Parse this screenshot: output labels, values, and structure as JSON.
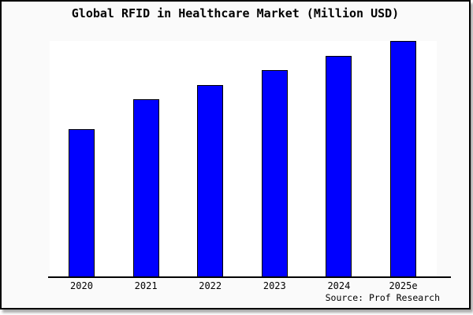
{
  "window": {
    "title": "Global RFID in Healthcare Market (Million USD)"
  },
  "chart_data": {
    "type": "bar",
    "title": "Global RFID in Healthcare Market (Million USD)",
    "categories": [
      "2020",
      "2021",
      "2022",
      "2023",
      "2024",
      "2025e"
    ],
    "values": [
      62.7,
      75.3,
      81.3,
      87.7,
      93.7,
      100.0
    ],
    "values_unit": "percent of tallest bar (no y-axis values shown in image)",
    "xlabel": "",
    "ylabel": "",
    "ylim": [
      0,
      100
    ],
    "grid": false,
    "legend": false,
    "bar_fill_color": "#0000ff",
    "bar_edge_color": "#000000",
    "source": "Source: Prof Research"
  },
  "colors": {
    "figure_background": "#fafafa",
    "plot_background": "#ffffff",
    "border": "#000000",
    "bar_fill": "#0000ff",
    "text": "#000000"
  }
}
